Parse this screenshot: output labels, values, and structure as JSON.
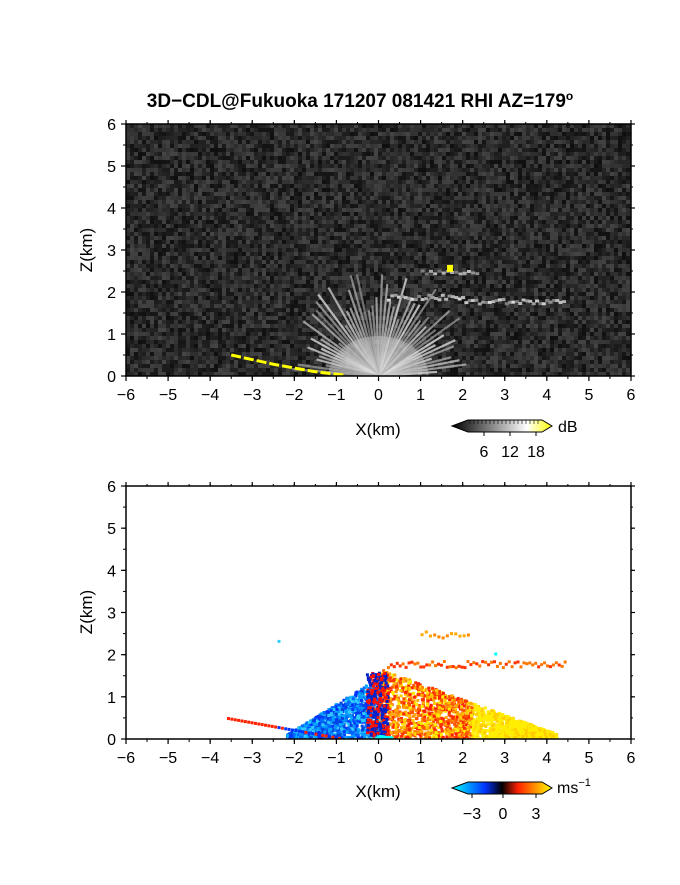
{
  "title": "3D−CDL@Fukuoka 171207 081421 RHI AZ=179",
  "title_sup": "o",
  "chart_data": [
    {
      "type": "heatmap",
      "name": "intensity",
      "xlabel": "X(km)",
      "ylabel": "Z(km)",
      "xlim": [
        -6,
        6
      ],
      "ylim": [
        0,
        6
      ],
      "xticks": [
        -6,
        -5,
        -4,
        -3,
        -2,
        -1,
        0,
        1,
        2,
        3,
        4,
        5,
        6
      ],
      "yticks": [
        0,
        1,
        2,
        3,
        4,
        5,
        6
      ],
      "background": "noise",
      "colorbar": {
        "unit": "dB",
        "ticks": [
          6,
          12,
          18
        ],
        "palette": [
          "#000000",
          "#ffffff",
          "#ffff00"
        ]
      },
      "features": {
        "ground_clutter_line": [
          [
            -3.5,
            0.5
          ],
          [
            -2.5,
            0.28
          ],
          [
            -1.5,
            0.1
          ],
          [
            -0.8,
            0.02
          ]
        ],
        "layer_z": 1.8,
        "hotspot": [
          1.7,
          2.55
        ]
      }
    },
    {
      "type": "heatmap",
      "name": "doppler",
      "xlabel": "X(km)",
      "ylabel": "Z(km)",
      "xlim": [
        -6,
        6
      ],
      "ylim": [
        0,
        6
      ],
      "xticks": [
        -6,
        -5,
        -4,
        -3,
        -2,
        -1,
        0,
        1,
        2,
        3,
        4,
        5,
        6
      ],
      "yticks": [
        0,
        1,
        2,
        3,
        4,
        5,
        6
      ],
      "colorbar": {
        "unit": "ms",
        "unit_sup": "−1",
        "ticks": [
          "−3",
          "0",
          "3"
        ],
        "palette": [
          "#00ffff",
          "#0000ff",
          "#ff0000",
          "#ffff00"
        ]
      },
      "features": {
        "negative_region_x": [
          -2,
          0
        ],
        "positive_region_x": [
          0,
          4.5
        ],
        "layer_z": 1.8,
        "top_z": 2.6
      }
    }
  ]
}
